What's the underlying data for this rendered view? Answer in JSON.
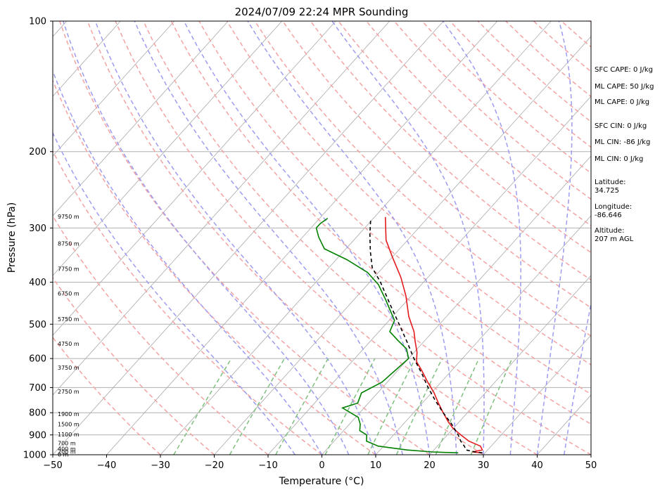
{
  "chart_data": {
    "type": "line",
    "title": "2024/07/09 22:24 MPR Sounding",
    "xlabel": "Temperature (°C)",
    "ylabel": "Pressure (hPa)",
    "xlim": [
      -50,
      50
    ],
    "ylim": [
      1000,
      100
    ],
    "yscale": "log",
    "grid": true,
    "x_ticks": [
      "−50",
      "−40",
      "−30",
      "−20",
      "−10",
      "0",
      "10",
      "20",
      "30",
      "40",
      "50"
    ],
    "y_ticks": [
      {
        "p": 100,
        "label": "100"
      },
      {
        "p": 200,
        "label": "200"
      },
      {
        "p": 300,
        "label": "300"
      },
      {
        "p": 400,
        "label": "400"
      },
      {
        "p": 500,
        "label": "500"
      },
      {
        "p": 600,
        "label": "600"
      },
      {
        "p": 700,
        "label": "700"
      },
      {
        "p": 800,
        "label": "800"
      },
      {
        "p": 900,
        "label": "900"
      },
      {
        "p": 1000,
        "label": "1000"
      }
    ],
    "height_labels": [
      {
        "p": 282,
        "label": "9750 m"
      },
      {
        "p": 326,
        "label": "8750 m"
      },
      {
        "p": 373,
        "label": "7750 m"
      },
      {
        "p": 425,
        "label": "6750 m"
      },
      {
        "p": 487,
        "label": "5750 m"
      },
      {
        "p": 555,
        "label": "4750 m"
      },
      {
        "p": 630,
        "label": "3750 m"
      },
      {
        "p": 715,
        "label": "2750 m"
      },
      {
        "p": 806,
        "label": "1900 m"
      },
      {
        "p": 850,
        "label": "1500 m"
      },
      {
        "p": 898,
        "label": "1100 m"
      },
      {
        "p": 940,
        "label": "700 m"
      },
      {
        "p": 968,
        "label": "400 m"
      },
      {
        "p": 983,
        "label": "200 m"
      },
      {
        "p": 999,
        "label": "0 m"
      }
    ],
    "series": [
      {
        "color": "#e41a1c",
        "style": "solid",
        "points": [
          [
            29.5,
            990
          ],
          [
            27.5,
            985
          ],
          [
            29,
            975
          ],
          [
            28,
            955
          ],
          [
            25,
            930
          ],
          [
            22.5,
            900
          ],
          [
            20,
            870
          ],
          [
            18,
            840
          ],
          [
            15.5,
            800
          ],
          [
            13,
            760
          ],
          [
            10.5,
            720
          ],
          [
            7.5,
            680
          ],
          [
            4.5,
            640
          ],
          [
            2,
            610
          ],
          [
            0.5,
            580
          ],
          [
            -1.5,
            550
          ],
          [
            -3.5,
            520
          ],
          [
            -7,
            480
          ],
          [
            -11,
            430
          ],
          [
            -15,
            390
          ],
          [
            -20,
            350
          ],
          [
            -24,
            320
          ],
          [
            -28,
            283
          ]
        ]
      },
      {
        "color": "#008000",
        "style": "solid",
        "points": [
          [
            25,
            990
          ],
          [
            20,
            985
          ],
          [
            15,
            975
          ],
          [
            9,
            955
          ],
          [
            6,
            930
          ],
          [
            5,
            900
          ],
          [
            3,
            880
          ],
          [
            2,
            850
          ],
          [
            0.5,
            820
          ],
          [
            -4,
            780
          ],
          [
            -2,
            760
          ],
          [
            -3,
            720
          ],
          [
            -1,
            680
          ],
          [
            -0.5,
            640
          ],
          [
            0,
            600
          ],
          [
            -2,
            570
          ],
          [
            -5,
            545
          ],
          [
            -8,
            520
          ],
          [
            -9,
            490
          ],
          [
            -14,
            440
          ],
          [
            -18,
            405
          ],
          [
            -22,
            380
          ],
          [
            -28,
            355
          ],
          [
            -34,
            335
          ],
          [
            -37,
            315
          ],
          [
            -39,
            300
          ],
          [
            -39,
            293
          ],
          [
            -38.5,
            285
          ]
        ]
      },
      {
        "color": "#000000",
        "style": "dashed",
        "points": [
          [
            29.5,
            990
          ],
          [
            28,
            985
          ],
          [
            26,
            975
          ],
          [
            25,
            955
          ],
          [
            23.5,
            930
          ],
          [
            22,
            900
          ],
          [
            19,
            850
          ],
          [
            15.5,
            800
          ],
          [
            12,
            750
          ],
          [
            8.5,
            700
          ],
          [
            5,
            650
          ],
          [
            1,
            600
          ],
          [
            -3,
            550
          ],
          [
            -7.5,
            500
          ],
          [
            -12.5,
            450
          ],
          [
            -18,
            400
          ],
          [
            -22,
            370
          ],
          [
            -25,
            340
          ],
          [
            -28,
            310
          ],
          [
            -30.5,
            285
          ]
        ]
      }
    ],
    "dry_adiabats_C": [
      -30,
      -20,
      -10,
      0,
      10,
      20,
      30,
      40,
      50,
      60,
      70,
      80,
      90,
      100,
      110,
      120,
      130,
      140,
      150,
      160,
      170,
      180,
      190,
      200,
      210
    ],
    "moist_adiabats_C": [
      -5,
      0,
      5,
      10,
      15,
      20,
      25,
      30,
      35,
      40,
      45,
      50
    ],
    "mixing_ratios_gkg": [
      0.4,
      1,
      2,
      4,
      7,
      10,
      16,
      24
    ],
    "indices": [
      "SFC CAPE: 0 J/kg",
      "ML CAPE: 50 J/kg",
      "ML CAPE: 0 J/kg",
      "SFC CIN: 0 J/kg",
      "ML CIN: -86 J/kg",
      "ML CIN: 0 J/kg"
    ],
    "location": {
      "latitude_label": "Latitude:",
      "latitude": "34.725",
      "longitude_label": "Longitude:",
      "longitude": "-86.646",
      "altitude_label": "Altitude:",
      "altitude": "207 m AGL"
    },
    "colors": {
      "temperature": "#e41a1c",
      "dewpoint": "#008000",
      "parcel": "#000000",
      "dry_adiabat": "#f4a3a3",
      "moist_adiabat": "#9d9cf0",
      "mixing_ratio": "#7fbf7f",
      "isotherm": "#aaaaaa"
    }
  }
}
